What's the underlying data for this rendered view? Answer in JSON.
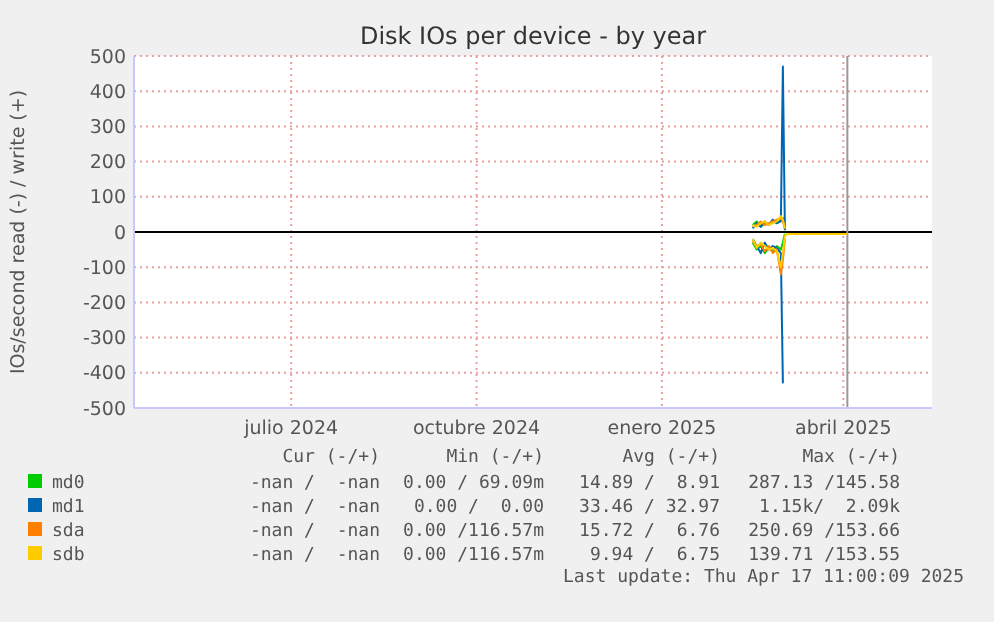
{
  "chart_data": {
    "type": "line",
    "title": "Disk IOs per device - by year",
    "ylabel": "IOs/second read (-) / write (+)",
    "x": [
      "2025-03-01",
      "2025-03-03",
      "2025-03-05",
      "2025-03-07",
      "2025-03-09",
      "2025-03-11",
      "2025-03-13",
      "2025-03-15",
      "2025-03-16",
      "2025-03-17",
      "2025-03-18",
      "2025-03-20",
      "2025-03-25",
      "2025-03-30",
      "2025-04-05",
      "2025-04-10",
      "2025-04-17"
    ],
    "xlim": [
      "2024-04-28",
      "2025-05-29"
    ],
    "xticks": [
      {
        "value": "2024-07-15",
        "label": "julio 2024"
      },
      {
        "value": "2024-10-15",
        "label": "octubre 2024"
      },
      {
        "value": "2025-01-15",
        "label": "enero 2025"
      },
      {
        "value": "2025-04-15",
        "label": "abril 2025"
      }
    ],
    "ylim": [
      -500,
      500
    ],
    "yticks": [
      -500,
      -400,
      -300,
      -200,
      -100,
      0,
      100,
      200,
      300,
      400,
      500
    ],
    "grid": true,
    "legend": "bottom",
    "series": [
      {
        "name": "md0",
        "color": "#00cc00",
        "values": [
          20,
          30,
          15,
          25,
          20,
          30,
          25,
          35,
          40,
          10,
          null,
          null,
          null,
          null,
          null,
          null,
          null
        ]
      },
      {
        "name": "md1",
        "color": "#0066b3",
        "values": [
          10,
          25,
          15,
          30,
          20,
          35,
          25,
          30,
          470,
          5,
          null,
          null,
          null,
          null,
          null,
          null,
          null
        ]
      },
      {
        "name": "sda",
        "color": "#ff8000",
        "values": [
          15,
          20,
          30,
          20,
          25,
          30,
          35,
          40,
          30,
          10,
          null,
          null,
          null,
          null,
          null,
          null,
          null
        ]
      },
      {
        "name": "sdb",
        "color": "#ffcc00",
        "values": [
          20,
          15,
          25,
          30,
          20,
          25,
          30,
          45,
          35,
          10,
          null,
          null,
          null,
          null,
          null,
          null,
          null
        ]
      },
      {
        "color": "#00cc00",
        "values": [
          -30,
          -50,
          -40,
          -60,
          -45,
          -55,
          -40,
          -50,
          -30,
          -5,
          null,
          null,
          null,
          null,
          null,
          null,
          null
        ]
      },
      {
        "color": "#0066b3",
        "values": [
          -20,
          -40,
          -60,
          -30,
          -50,
          -40,
          -45,
          -60,
          -430,
          null,
          null,
          null,
          null,
          null,
          null,
          null,
          null
        ]
      },
      {
        "color": "#ff8000",
        "values": [
          -25,
          -40,
          -35,
          -55,
          -40,
          -60,
          -50,
          -120,
          -80,
          -20,
          null,
          null,
          null,
          null,
          null,
          null,
          null
        ]
      },
      {
        "color": "#ffcc00",
        "values": [
          -20,
          -45,
          -30,
          -40,
          -50,
          -45,
          -55,
          -100,
          -60,
          -10,
          -6,
          -6,
          -6,
          -6,
          -6,
          -6,
          -6
        ]
      }
    ],
    "ref_lines": [
      {
        "axis": "y",
        "value": 0,
        "color": "#000000"
      },
      {
        "axis": "x",
        "value": "2025-04-17",
        "color": "#999999"
      }
    ],
    "annotations": [
      "Cur (-/+)",
      "Min (-/+)",
      "Avg (-/+)",
      "Max (-/+)",
      "-nan /  -nan",
      "0.00 / 69.09m",
      "14.89 /  8.91",
      "287.13 /145.58",
      "-nan /  -nan",
      "0.00 /  0.00",
      "33.46 / 32.97",
      "1.15k/  2.09k",
      "-nan /  -nan",
      "0.00 /116.57m",
      "15.72 /  6.76",
      "250.69 /153.66",
      "-nan /  -nan",
      "0.00 /116.57m",
      "9.94 /  6.75",
      "139.71 /153.55",
      "Last update: Thu Apr 17 11:00:09 2025"
    ]
  }
}
